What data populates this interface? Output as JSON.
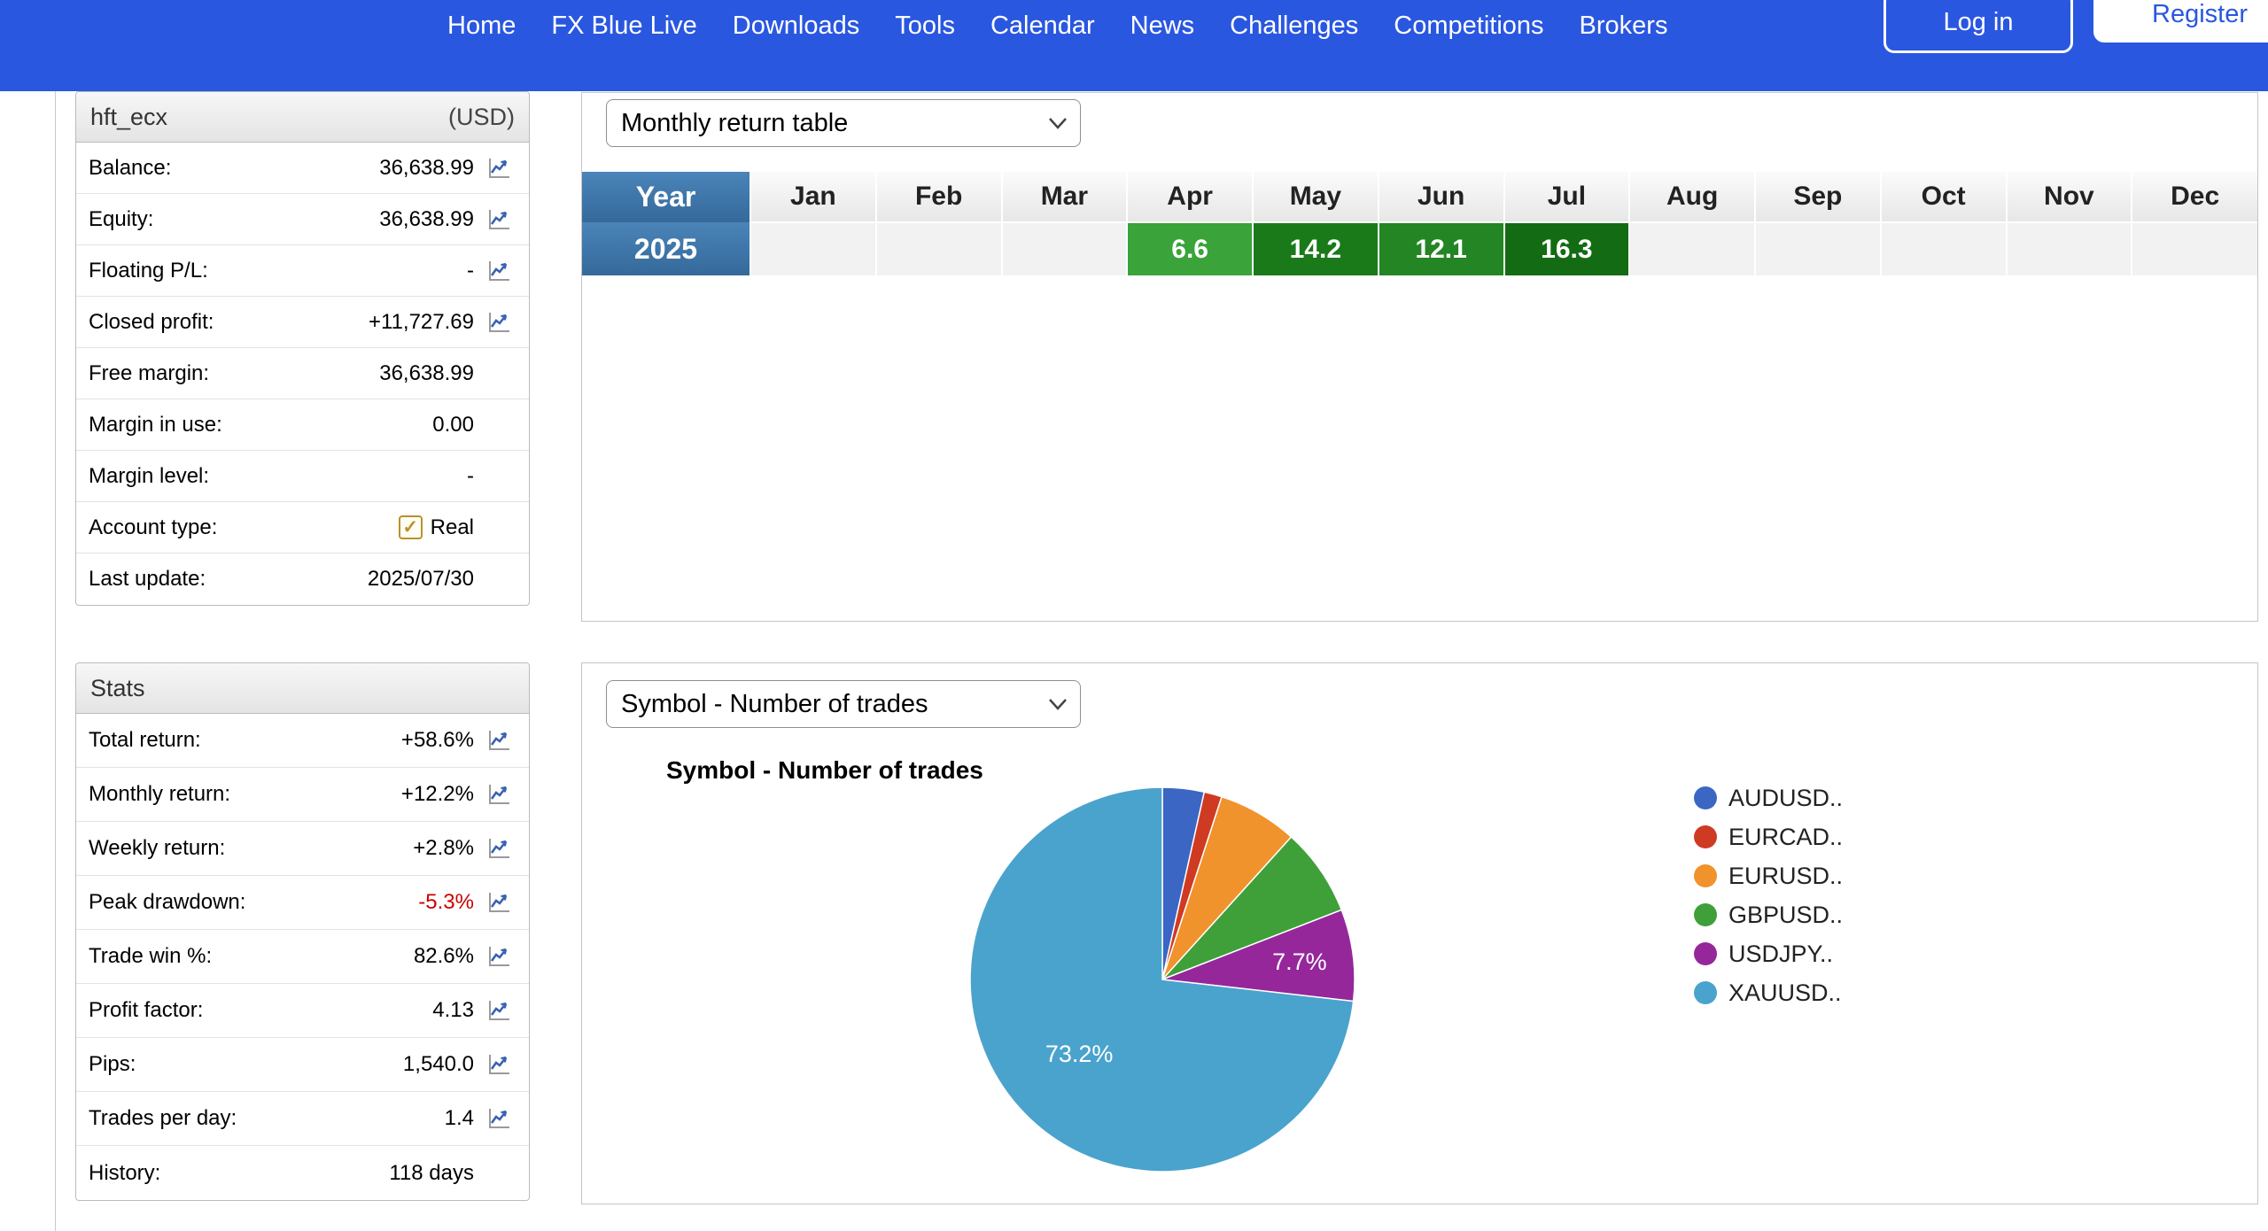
{
  "nav": {
    "items": [
      "Home",
      "FX Blue Live",
      "Downloads",
      "Tools",
      "Calendar",
      "News",
      "Challenges",
      "Competitions",
      "Brokers"
    ],
    "login_label": "Log in",
    "register_label": "Register"
  },
  "account": {
    "title": "hft_ecx",
    "currency": "(USD)",
    "rows": [
      {
        "label": "Balance:",
        "value": "36,638.99",
        "icon": true
      },
      {
        "label": "Equity:",
        "value": "36,638.99",
        "icon": true
      },
      {
        "label": "Floating P/L:",
        "value": "-",
        "icon": true
      },
      {
        "label": "Closed profit:",
        "value": "+11,727.69",
        "icon": true
      },
      {
        "label": "Free margin:",
        "value": "36,638.99",
        "icon": false
      },
      {
        "label": "Margin in use:",
        "value": "0.00",
        "icon": false
      },
      {
        "label": "Margin level:",
        "value": "-",
        "icon": false
      },
      {
        "label": "Account type:",
        "value": "Real",
        "icon": false,
        "checkbox": true
      },
      {
        "label": "Last update:",
        "value": "2025/07/30",
        "icon": false
      }
    ]
  },
  "stats": {
    "title": "Stats",
    "rows": [
      {
        "label": "Total return:",
        "value": "+58.6%",
        "icon": true
      },
      {
        "label": "Monthly return:",
        "value": "+12.2%",
        "icon": true
      },
      {
        "label": "Weekly return:",
        "value": "+2.8%",
        "icon": true
      },
      {
        "label": "Peak drawdown:",
        "value": "-5.3%",
        "icon": true,
        "value_color": "#cc0000"
      },
      {
        "label": "Trade win %:",
        "value": "82.6%",
        "icon": true
      },
      {
        "label": "Profit factor:",
        "value": "4.13",
        "icon": true
      },
      {
        "label": "Pips:",
        "value": "1,540.0",
        "icon": true
      },
      {
        "label": "Trades per day:",
        "value": "1.4",
        "icon": true
      },
      {
        "label": "History:",
        "value": "118 days",
        "icon": false
      }
    ]
  },
  "monthly_panel": {
    "dropdown_value": "Monthly return table"
  },
  "symbol_panel": {
    "dropdown_value": "Symbol - Number of trades",
    "chart_title": "Symbol - Number of trades"
  },
  "theme": {
    "nav_blue": "#2a57e0",
    "table_header_blue": "#3d76aa",
    "drawdown_red": "#cc0000",
    "checkbox_gold": "#b8912a"
  },
  "chart_data": [
    {
      "type": "table",
      "title": "Monthly return table",
      "columns": [
        "Year",
        "Jan",
        "Feb",
        "Mar",
        "Apr",
        "May",
        "Jun",
        "Jul",
        "Aug",
        "Sep",
        "Oct",
        "Nov",
        "Dec"
      ],
      "rows": [
        {
          "year": "2025",
          "values": {
            "Apr": 6.6,
            "May": 14.2,
            "Jun": 12.1,
            "Jul": 16.3
          }
        }
      ],
      "cell_colors": {
        "Apr": "#3aa33a",
        "May": "#1a7a1a",
        "Jun": "#238523",
        "Jul": "#136c13"
      }
    },
    {
      "type": "pie",
      "title": "Symbol - Number of trades",
      "labels": [
        "AUDUSD..",
        "EURCAD..",
        "EURUSD..",
        "GBPUSD..",
        "USDJPY..",
        "XAUUSD.."
      ],
      "values": [
        3.5,
        1.5,
        6.7,
        7.4,
        7.7,
        73.2
      ],
      "colors": [
        "#3b66c4",
        "#cf3a23",
        "#f0932c",
        "#3fa03a",
        "#95279b",
        "#4aa3cc"
      ],
      "displayed_labels": {
        "USDJPY..": "7.7%",
        "XAUUSD..": "73.2%"
      },
      "legend_position": "right"
    }
  ]
}
